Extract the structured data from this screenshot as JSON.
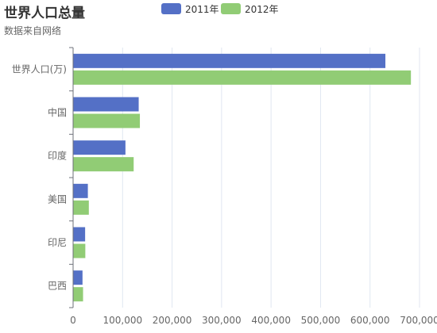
{
  "chart_data": {
    "type": "bar",
    "orientation": "horizontal",
    "title": "世界人口总量",
    "subtitle": "数据来自网络",
    "categories": [
      "世界人口(万)",
      "中国",
      "印度",
      "美国",
      "印尼",
      "巴西"
    ],
    "series": [
      {
        "name": "2011年",
        "color": "#5470c6",
        "values": [
          630230,
          131744,
          104970,
          29034,
          23489,
          18203
        ]
      },
      {
        "name": "2012年",
        "color": "#91cc75",
        "values": [
          681807,
          134141,
          121594,
          31000,
          23890,
          19325
        ]
      }
    ],
    "xlim": [
      0,
      700000
    ],
    "x_ticks": [
      "0",
      "100,000",
      "200,000",
      "300,000",
      "400,000",
      "500,000",
      "600,000",
      "700,000"
    ],
    "grid": true,
    "legend_position": "top-center"
  }
}
